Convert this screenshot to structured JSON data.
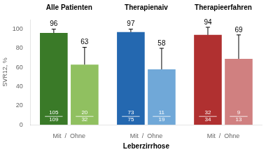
{
  "chart_data": {
    "type": "bar",
    "categories": [
      "Alle Patienten",
      "Therapienaiv",
      "Therapieerfahren"
    ],
    "annotations": [
      "Mit  /  Ohne",
      "Mit  /  Ohne",
      "Mit  /  Ohne"
    ],
    "x_label": "Leberzirrhose",
    "y_label": "SVR12, %",
    "series": [
      {
        "values": [
          96,
          97,
          94
        ],
        "errors": [
          4,
          3,
          8
        ],
        "colors": [
          "#3a7a28",
          "#2468b0",
          "#b03030"
        ],
        "fractions": [
          [
            "105",
            "109"
          ],
          [
            "73",
            "75"
          ],
          [
            "32",
            "34"
          ]
        ]
      },
      {
        "values": [
          63,
          58,
          69
        ],
        "errors": [
          18,
          22,
          25
        ],
        "colors": [
          "#90c060",
          "#70a8d8",
          "#d08080"
        ],
        "fractions": [
          [
            "20",
            "32"
          ],
          [
            "11",
            "19"
          ],
          [
            "9",
            "13"
          ]
        ]
      }
    ],
    "ylim": [
      0,
      110
    ],
    "yticks": [
      0,
      20,
      40,
      60,
      80,
      100
    ],
    "grid": false,
    "data_labels": true
  }
}
